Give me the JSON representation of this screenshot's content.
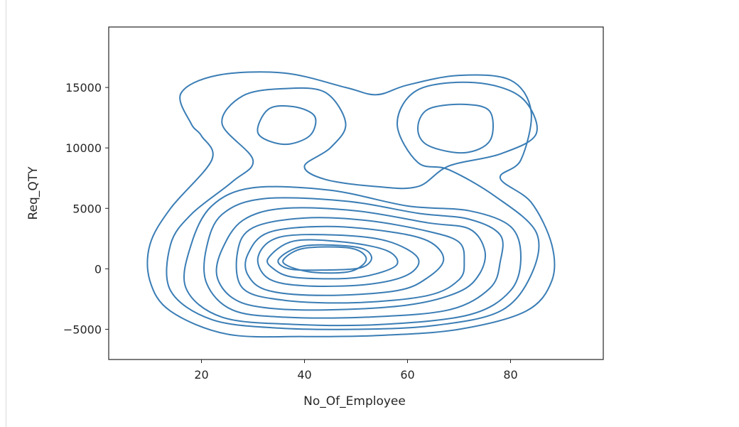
{
  "chart_data": {
    "type": "kde-contour",
    "xlabel": "No_Of_Employee",
    "ylabel": "Req_QTY",
    "xlim": [
      2,
      98
    ],
    "ylim": [
      -7500,
      20000
    ],
    "xticks": [
      20,
      40,
      60,
      80
    ],
    "yticks": [
      -5000,
      0,
      5000,
      10000,
      15000
    ],
    "grid": false,
    "line_color": "#3a7db5",
    "density_modes": [
      {
        "x": 44,
        "y": 800,
        "weight": 1.0
      },
      {
        "x": 35,
        "y": 11800,
        "weight": 0.3
      },
      {
        "x": 70,
        "y": 11400,
        "weight": 0.3
      }
    ],
    "contours": [
      {
        "level": 1,
        "points": [
          [
            18,
            12000
          ],
          [
            16,
            14500
          ],
          [
            23,
            16000
          ],
          [
            36,
            16200
          ],
          [
            48,
            15000
          ],
          [
            54,
            14400
          ],
          [
            60,
            15200
          ],
          [
            70,
            16000
          ],
          [
            80,
            15600
          ],
          [
            84,
            13000
          ],
          [
            82,
            9000
          ],
          [
            78,
            7500
          ],
          [
            84,
            5500
          ],
          [
            88,
            2000
          ],
          [
            88,
            -1000
          ],
          [
            83,
            -3500
          ],
          [
            70,
            -5000
          ],
          [
            55,
            -5500
          ],
          [
            40,
            -5600
          ],
          [
            25,
            -5400
          ],
          [
            14,
            -3500
          ],
          [
            10,
            -1000
          ],
          [
            10,
            2000
          ],
          [
            14,
            5000
          ],
          [
            22,
            9000
          ],
          [
            20,
            11000
          ]
        ]
      },
      {
        "level": 2,
        "points": [
          [
            24,
            12000
          ],
          [
            28,
            14300
          ],
          [
            36,
            14900
          ],
          [
            44,
            14600
          ],
          [
            48,
            12000
          ],
          [
            45,
            10000
          ],
          [
            40,
            8500
          ],
          [
            44,
            7400
          ],
          [
            54,
            6800
          ],
          [
            62,
            6800
          ],
          [
            68,
            8500
          ],
          [
            78,
            9500
          ],
          [
            85,
            11200
          ],
          [
            82,
            14200
          ],
          [
            73,
            15400
          ],
          [
            62,
            14800
          ],
          [
            58,
            12000
          ],
          [
            62,
            8800
          ],
          [
            68,
            8200
          ],
          [
            77,
            6000
          ],
          [
            85,
            3000
          ],
          [
            84,
            -500
          ],
          [
            78,
            -3500
          ],
          [
            65,
            -4700
          ],
          [
            50,
            -5000
          ],
          [
            35,
            -4900
          ],
          [
            22,
            -4200
          ],
          [
            14,
            -1800
          ],
          [
            14,
            2000
          ],
          [
            18,
            4500
          ],
          [
            26,
            7200
          ],
          [
            30,
            9000
          ]
        ]
      },
      {
        "level": 3,
        "points": [
          [
            31,
            11200
          ],
          [
            33,
            13200
          ],
          [
            38,
            13400
          ],
          [
            42,
            12600
          ],
          [
            41,
            11000
          ],
          [
            36,
            10300
          ]
        ]
      },
      {
        "level": 4,
        "points": [
          [
            62,
            11600
          ],
          [
            64,
            13200
          ],
          [
            71,
            13600
          ],
          [
            76,
            13000
          ],
          [
            76,
            10600
          ],
          [
            71,
            9600
          ],
          [
            64,
            10200
          ]
        ]
      },
      {
        "level": 5,
        "points": [
          [
            18,
            2000
          ],
          [
            22,
            5200
          ],
          [
            30,
            6700
          ],
          [
            45,
            6500
          ],
          [
            60,
            5200
          ],
          [
            72,
            4800
          ],
          [
            80,
            3500
          ],
          [
            82,
            1000
          ],
          [
            80,
            -1800
          ],
          [
            72,
            -3800
          ],
          [
            55,
            -4600
          ],
          [
            38,
            -4600
          ],
          [
            24,
            -4000
          ],
          [
            17,
            -1600
          ]
        ]
      },
      {
        "level": 6,
        "points": [
          [
            21,
            1800
          ],
          [
            24,
            4500
          ],
          [
            32,
            5800
          ],
          [
            48,
            5600
          ],
          [
            62,
            4600
          ],
          [
            72,
            4100
          ],
          [
            78,
            2800
          ],
          [
            78,
            600
          ],
          [
            76,
            -1600
          ],
          [
            68,
            -3400
          ],
          [
            52,
            -4000
          ],
          [
            36,
            -4000
          ],
          [
            26,
            -3400
          ],
          [
            21,
            -1200
          ]
        ]
      },
      {
        "level": 7,
        "points": [
          [
            24,
            1600
          ],
          [
            28,
            4000
          ],
          [
            36,
            5000
          ],
          [
            50,
            4800
          ],
          [
            64,
            3800
          ],
          [
            72,
            3300
          ],
          [
            75,
            1500
          ],
          [
            74,
            -400
          ],
          [
            70,
            -1900
          ],
          [
            60,
            -3000
          ],
          [
            44,
            -3400
          ],
          [
            32,
            -3200
          ],
          [
            26,
            -2400
          ],
          [
            23,
            -600
          ]
        ]
      },
      {
        "level": 8,
        "points": [
          [
            27,
            1400
          ],
          [
            30,
            3400
          ],
          [
            40,
            4200
          ],
          [
            52,
            4000
          ],
          [
            64,
            3100
          ],
          [
            70,
            2200
          ],
          [
            71,
            600
          ],
          [
            70,
            -900
          ],
          [
            64,
            -2200
          ],
          [
            50,
            -2800
          ],
          [
            36,
            -2600
          ],
          [
            28,
            -1600
          ]
        ]
      },
      {
        "level": 9,
        "points": [
          [
            29,
            1200
          ],
          [
            33,
            3000
          ],
          [
            44,
            3500
          ],
          [
            56,
            3100
          ],
          [
            64,
            2300
          ],
          [
            67,
            800
          ],
          [
            64,
            -700
          ],
          [
            58,
            -1800
          ],
          [
            44,
            -2200
          ],
          [
            33,
            -1800
          ],
          [
            29,
            -500
          ]
        ]
      },
      {
        "level": 10,
        "points": [
          [
            31,
            1000
          ],
          [
            35,
            2600
          ],
          [
            46,
            2800
          ],
          [
            56,
            2300
          ],
          [
            62,
            900
          ],
          [
            60,
            -500
          ],
          [
            52,
            -1300
          ],
          [
            40,
            -1400
          ],
          [
            33,
            -800
          ]
        ]
      },
      {
        "level": 11,
        "points": [
          [
            33,
            900
          ],
          [
            38,
            2300
          ],
          [
            48,
            2200
          ],
          [
            56,
            1500
          ],
          [
            58,
            400
          ],
          [
            54,
            -400
          ],
          [
            48,
            -800
          ],
          [
            38,
            -700
          ],
          [
            34,
            0
          ]
        ]
      },
      {
        "level": 12,
        "points": [
          [
            35,
            800
          ],
          [
            40,
            1900
          ],
          [
            50,
            1800
          ],
          [
            53,
            1000
          ],
          [
            51,
            100
          ],
          [
            44,
            -100
          ],
          [
            37,
            0
          ]
        ]
      },
      {
        "level": 13,
        "points": [
          [
            36,
            800
          ],
          [
            40,
            1700
          ],
          [
            49,
            1700
          ],
          [
            52,
            800
          ],
          [
            49,
            -200
          ],
          [
            42,
            -300
          ],
          [
            37,
            200
          ]
        ]
      }
    ]
  }
}
